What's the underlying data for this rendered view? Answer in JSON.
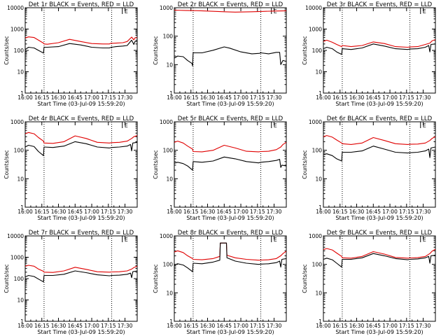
{
  "colors": {
    "events": "#000000",
    "lld": "#e00000",
    "axis": "#000000"
  },
  "shared": {
    "x_label": "Start Time (03-Jul-09 15:59:20)",
    "y_label": "Counts/sec",
    "x_ticks": [
      "16:00",
      "16:15",
      "16:30",
      "16:45",
      "17:00",
      "17:15",
      "17:30"
    ],
    "x_tick_minutes": [
      0,
      15,
      30,
      45,
      60,
      75,
      90
    ],
    "x_range_minutes": [
      0,
      101
    ],
    "marker_letter": "E",
    "marker_minute": 89.5,
    "dotted_lines_minutes": [
      17,
      78
    ],
    "y_scale": "log"
  },
  "chart_data": [
    {
      "type": "line",
      "title": "Det 1r BLACK = Events, RED = LLD",
      "ylim": [
        1,
        10000
      ],
      "y_ticks": [
        1,
        10,
        100,
        1000,
        10000
      ],
      "y_tick_labels": [
        "1",
        "10",
        "100",
        "1000",
        "10000"
      ],
      "series": [
        {
          "name": "Events",
          "x": [
            0,
            3,
            8,
            12,
            16.5,
            17,
            20,
            30,
            40,
            50,
            60,
            70,
            76,
            77.5,
            78,
            82,
            88,
            92,
            96,
            98,
            99,
            101
          ],
          "values": [
            110,
            140,
            130,
            100,
            75,
            140,
            140,
            150,
            210,
            180,
            140,
            130,
            130,
            140,
            140,
            150,
            160,
            170,
            300,
            190,
            260,
            260
          ]
        },
        {
          "name": "LLD",
          "x": [
            0,
            3,
            8,
            12,
            16.5,
            17,
            20,
            30,
            40,
            50,
            60,
            70,
            76,
            77.5,
            78,
            82,
            88,
            92,
            96,
            98,
            99,
            101
          ],
          "values": [
            380,
            430,
            400,
            300,
            220,
            200,
            195,
            230,
            330,
            260,
            210,
            200,
            200,
            220,
            215,
            220,
            230,
            260,
            420,
            310,
            390,
            390
          ]
        }
      ]
    },
    {
      "type": "line",
      "title": "Det 2r BLACK = Events, RED = LLD",
      "ylim": [
        1,
        1000
      ],
      "y_ticks": [
        1,
        10,
        100,
        1000
      ],
      "y_tick_labels": [
        "1",
        "10",
        "100",
        "1000"
      ],
      "series": [
        {
          "name": "Events",
          "x": [
            0,
            3,
            8,
            12,
            16,
            16.5,
            17,
            25,
            35,
            45,
            50,
            60,
            70,
            77,
            77.5,
            78,
            85,
            92,
            95,
            96,
            98,
            101
          ],
          "values": [
            17,
            20,
            19,
            14,
            11,
            9,
            26,
            26,
            32,
            42,
            38,
            28,
            24,
            25,
            26,
            26,
            24,
            27,
            27,
            10,
            14,
            13
          ]
        },
        {
          "name": "LLD",
          "x": [
            0,
            10,
            20,
            30,
            45,
            55,
            70,
            80,
            90,
            101
          ],
          "values": [
            820,
            800,
            790,
            760,
            720,
            700,
            720,
            740,
            760,
            780
          ]
        }
      ]
    },
    {
      "type": "line",
      "title": "Det 3r BLACK = Events, RED = LLD",
      "ylim": [
        1,
        10000
      ],
      "y_ticks": [
        1,
        10,
        100,
        1000,
        10000
      ],
      "y_tick_labels": [
        "1",
        "10",
        "100",
        "1000",
        "10000"
      ],
      "series": [
        {
          "name": "Events",
          "x": [
            0,
            3,
            8,
            12,
            16.5,
            17,
            25,
            35,
            45,
            55,
            65,
            76,
            78,
            85,
            92,
            95,
            96,
            97,
            101
          ],
          "values": [
            120,
            140,
            120,
            85,
            65,
            120,
            110,
            130,
            200,
            160,
            120,
            110,
            115,
            120,
            140,
            170,
            85,
            190,
            200
          ]
        },
        {
          "name": "LLD",
          "x": [
            0,
            3,
            8,
            12,
            16.5,
            17,
            25,
            35,
            45,
            55,
            65,
            76,
            78,
            85,
            92,
            96,
            98,
            101
          ],
          "values": [
            260,
            300,
            240,
            190,
            150,
            170,
            150,
            170,
            250,
            210,
            150,
            140,
            145,
            150,
            190,
            220,
            280,
            320
          ]
        }
      ]
    },
    {
      "type": "line",
      "title": "Det 4r BLACK = Events, RED = LLD",
      "ylim": [
        1,
        1000
      ],
      "y_ticks": [
        1,
        10,
        100,
        1000
      ],
      "y_tick_labels": [
        "1",
        "10",
        "100",
        "1000"
      ],
      "series": [
        {
          "name": "Events",
          "x": [
            0,
            3,
            8,
            12,
            16.5,
            17,
            25,
            35,
            45,
            55,
            65,
            76,
            78,
            85,
            92,
            95,
            96,
            97,
            101
          ],
          "values": [
            130,
            150,
            135,
            90,
            65,
            130,
            125,
            140,
            200,
            170,
            130,
            120,
            125,
            130,
            140,
            160,
            95,
            180,
            190
          ]
        },
        {
          "name": "LLD",
          "x": [
            0,
            3,
            8,
            12,
            16.5,
            17,
            25,
            35,
            45,
            55,
            65,
            76,
            78,
            85,
            92,
            96,
            98,
            101
          ],
          "values": [
            380,
            420,
            380,
            280,
            210,
            180,
            175,
            200,
            320,
            260,
            190,
            180,
            185,
            190,
            210,
            260,
            300,
            330
          ]
        }
      ]
    },
    {
      "type": "line",
      "title": "Det 5r BLACK = Events, RED = LLD",
      "ylim": [
        1,
        1000
      ],
      "y_ticks": [
        1,
        10,
        100,
        1000
      ],
      "y_tick_labels": [
        "1",
        "10",
        "100",
        "1000"
      ],
      "series": [
        {
          "name": "Events",
          "x": [
            0,
            3,
            8,
            12,
            16.5,
            17,
            25,
            35,
            45,
            55,
            65,
            76,
            78,
            85,
            92,
            95,
            96,
            97,
            101
          ],
          "values": [
            35,
            38,
            34,
            28,
            20,
            40,
            38,
            42,
            58,
            50,
            40,
            36,
            38,
            40,
            44,
            48,
            25,
            30,
            28
          ]
        },
        {
          "name": "LLD",
          "x": [
            0,
            3,
            8,
            12,
            16.5,
            17,
            25,
            35,
            45,
            55,
            65,
            76,
            78,
            85,
            92,
            96,
            98,
            101
          ],
          "values": [
            190,
            210,
            180,
            140,
            110,
            90,
            88,
            100,
            150,
            120,
            92,
            88,
            90,
            92,
            105,
            130,
            160,
            190
          ]
        }
      ]
    },
    {
      "type": "line",
      "title": "Det 6r BLACK = Events, RED = LLD",
      "ylim": [
        1,
        1000
      ],
      "y_ticks": [
        1,
        10,
        100,
        1000
      ],
      "y_tick_labels": [
        "1",
        "10",
        "100",
        "1000"
      ],
      "series": [
        {
          "name": "Events",
          "x": [
            0,
            3,
            8,
            12,
            16.5,
            17,
            25,
            35,
            45,
            55,
            65,
            76,
            78,
            85,
            92,
            95,
            96,
            97,
            101
          ],
          "values": [
            70,
            75,
            65,
            50,
            42,
            85,
            85,
            95,
            140,
            110,
            85,
            80,
            82,
            85,
            95,
            110,
            55,
            120,
            130
          ]
        },
        {
          "name": "LLD",
          "x": [
            0,
            3,
            8,
            12,
            16.5,
            17,
            25,
            35,
            45,
            55,
            65,
            76,
            78,
            85,
            92,
            96,
            98,
            101
          ],
          "values": [
            300,
            330,
            290,
            230,
            180,
            170,
            160,
            180,
            280,
            220,
            170,
            160,
            162,
            165,
            180,
            220,
            260,
            300
          ]
        }
      ]
    },
    {
      "type": "line",
      "title": "Det 7r BLACK = Events, RED = LLD",
      "ylim": [
        1,
        10000
      ],
      "y_ticks": [
        1,
        10,
        100,
        1000,
        10000
      ],
      "y_tick_labels": [
        "1",
        "10",
        "100",
        "1000",
        "10000"
      ],
      "series": [
        {
          "name": "Events",
          "x": [
            0,
            3,
            8,
            12,
            16.5,
            17,
            25,
            35,
            45,
            55,
            65,
            76,
            78,
            85,
            92,
            95,
            96,
            97,
            101
          ],
          "values": [
            120,
            140,
            125,
            95,
            70,
            140,
            140,
            160,
            230,
            190,
            150,
            135,
            140,
            145,
            160,
            180,
            110,
            210,
            230
          ]
        },
        {
          "name": "LLD",
          "x": [
            0,
            3,
            8,
            12,
            16.5,
            17,
            25,
            35,
            45,
            55,
            65,
            76,
            78,
            85,
            92,
            96,
            98,
            101
          ],
          "values": [
            380,
            420,
            380,
            280,
            220,
            200,
            195,
            230,
            340,
            270,
            210,
            200,
            205,
            210,
            230,
            280,
            330,
            380
          ]
        }
      ]
    },
    {
      "type": "line",
      "title": "Det 8r BLACK = Events, RED = LLD",
      "ylim": [
        1,
        1000
      ],
      "y_ticks": [
        1,
        10,
        100,
        1000
      ],
      "y_tick_labels": [
        "1",
        "10",
        "100",
        "1000"
      ],
      "series": [
        {
          "name": "Events",
          "x": [
            0,
            3,
            8,
            12,
            16.5,
            17,
            25,
            35,
            41,
            41.5,
            47,
            47.5,
            55,
            65,
            76,
            78,
            85,
            92,
            95,
            96,
            97,
            101
          ],
          "values": [
            95,
            105,
            95,
            75,
            55,
            110,
            105,
            120,
            140,
            560,
            560,
            170,
            130,
            110,
            100,
            102,
            105,
            115,
            130,
            80,
            150,
            160
          ]
        },
        {
          "name": "LLD",
          "x": [
            0,
            3,
            8,
            12,
            16.5,
            17,
            25,
            35,
            41,
            41.5,
            47,
            47.5,
            55,
            65,
            76,
            78,
            85,
            92,
            96,
            98,
            101
          ],
          "values": [
            270,
            300,
            260,
            200,
            160,
            150,
            145,
            160,
            190,
            560,
            560,
            210,
            170,
            150,
            140,
            142,
            145,
            160,
            200,
            240,
            290
          ]
        }
      ]
    },
    {
      "type": "line",
      "title": "Det 9r BLACK = Events, RED = LLD",
      "ylim": [
        1,
        1000
      ],
      "y_ticks": [
        1,
        10,
        100,
        1000
      ],
      "y_tick_labels": [
        "1",
        "10",
        "100",
        "1000"
      ],
      "series": [
        {
          "name": "Events",
          "x": [
            0,
            3,
            8,
            12,
            16.5,
            17,
            25,
            35,
            45,
            55,
            65,
            76,
            78,
            85,
            92,
            95,
            96,
            97,
            101
          ],
          "values": [
            150,
            165,
            145,
            110,
            80,
            150,
            150,
            170,
            240,
            200,
            160,
            145,
            150,
            155,
            170,
            190,
            110,
            200,
            210
          ]
        },
        {
          "name": "LLD",
          "x": [
            0,
            3,
            8,
            12,
            16.5,
            17,
            25,
            35,
            45,
            55,
            65,
            76,
            78,
            85,
            92,
            96,
            98,
            101
          ],
          "values": [
            330,
            360,
            320,
            250,
            190,
            170,
            165,
            190,
            280,
            230,
            175,
            165,
            168,
            172,
            190,
            240,
            290,
            340
          ]
        }
      ]
    }
  ]
}
